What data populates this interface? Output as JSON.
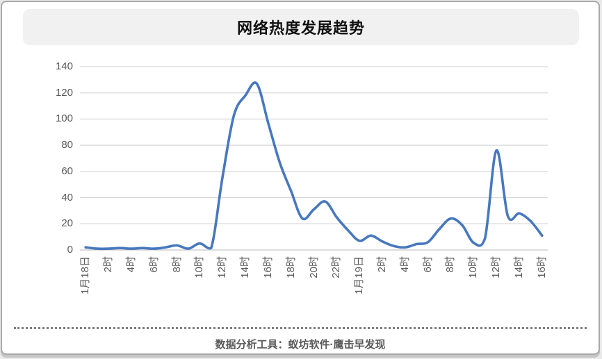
{
  "header": {
    "title": "网络热度发展趋势"
  },
  "footer": {
    "text": "数据分析工具：蚁坊软件·鹰击早发现"
  },
  "chart_data": {
    "type": "line",
    "title": "网络热度发展趋势",
    "x_tick_labels": [
      "1月18日",
      "2时",
      "4时",
      "6时",
      "8时",
      "10时",
      "12时",
      "14时",
      "16时",
      "18时",
      "20时",
      "22时",
      "1月19日",
      "2时",
      "4时",
      "6时",
      "8时",
      "10时",
      "12时",
      "14时",
      "16时"
    ],
    "x_tick_every_n_points": 2,
    "values": [
      2,
      1,
      1,
      1.5,
      1,
      1.5,
      1,
      2,
      3.5,
      1,
      5,
      1.5,
      56,
      103,
      118,
      127,
      97,
      67,
      45,
      24,
      31,
      37,
      25,
      15,
      7,
      11,
      6.5,
      3,
      2,
      4.5,
      6,
      16,
      24,
      19,
      5.5,
      9,
      76,
      26,
      28,
      22,
      11
    ],
    "y_ticks": [
      0,
      20,
      40,
      60,
      80,
      100,
      120,
      140
    ],
    "ylim": [
      0,
      140
    ],
    "grid": "horizontal",
    "legend": "none",
    "line_color": "#4878BE",
    "gridline_color": "#d9d9d9"
  }
}
